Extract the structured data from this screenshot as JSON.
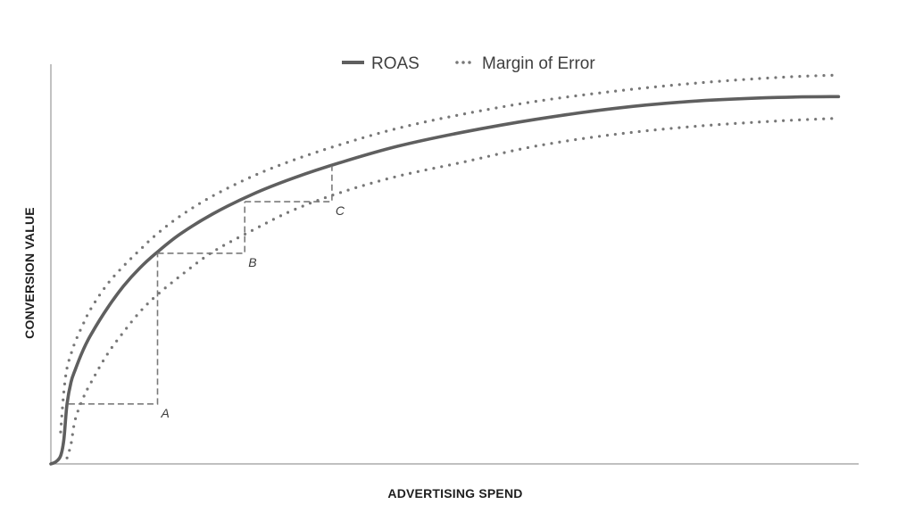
{
  "chart_data": {
    "type": "line",
    "title": "",
    "xlabel": "ADVERTISING SPEND",
    "ylabel": "CONVERSION VALUE",
    "xlim": [
      0,
      100
    ],
    "ylim": [
      0,
      100
    ],
    "grid": false,
    "legend_position": "top-center",
    "legend": [
      {
        "name": "ROAS",
        "style": "solid"
      },
      {
        "name": "Margin of Error",
        "style": "dotted"
      }
    ],
    "series": [
      {
        "name": "ROAS",
        "style": "solid",
        "color": "#5f5f5f",
        "x": [
          0,
          0.6,
          1.2,
          1.6,
          2.0,
          2.5,
          3.0,
          4.0,
          5.0,
          7.0,
          9.0,
          11.0,
          13.0,
          16.0,
          20.0,
          25.0,
          30.0,
          36.0,
          43.0,
          51.0,
          60.0,
          70.0,
          80.0,
          90.0,
          97.5
        ],
        "y": [
          0,
          0.5,
          2.0,
          6.0,
          15.0,
          20.5,
          23.5,
          28.5,
          32.5,
          39.0,
          44.5,
          49.0,
          52.7,
          57.5,
          62.5,
          67.5,
          71.5,
          75.5,
          79.5,
          83.0,
          86.2,
          89.0,
          90.8,
          91.7,
          91.9
        ]
      },
      {
        "name": "Margin of Error (upper)",
        "style": "dotted",
        "color": "#777777",
        "x": [
          1.2,
          1.6,
          2.0,
          2.5,
          3.0,
          4.0,
          5.0,
          7.0,
          9.0,
          11.0,
          13.0,
          16.0,
          20.0,
          25.0,
          30.0,
          36.0,
          43.0,
          51.0,
          60.0,
          70.0,
          80.0,
          90.0,
          97.5
        ],
        "y": [
          8.0,
          18.0,
          24.0,
          27.5,
          30.5,
          35.0,
          39.0,
          45.0,
          49.5,
          53.5,
          57.3,
          62.0,
          67.0,
          72.0,
          76.0,
          80.0,
          84.0,
          87.5,
          90.7,
          93.3,
          95.3,
          96.7,
          97.3
        ]
      },
      {
        "name": "Margin of Error (lower)",
        "style": "dotted",
        "color": "#777777",
        "x": [
          2.0,
          2.5,
          3.0,
          4.0,
          5.0,
          7.0,
          9.0,
          11.0,
          13.0,
          16.0,
          20.0,
          25.0,
          30.0,
          36.0,
          43.0,
          51.0,
          60.0,
          70.0,
          80.0,
          90.0,
          97.5
        ],
        "y": [
          1.5,
          5.0,
          11.0,
          16.5,
          20.5,
          27.5,
          33.0,
          38.0,
          42.0,
          47.0,
          53.0,
          58.5,
          63.5,
          68.0,
          72.0,
          75.5,
          79.5,
          82.5,
          84.5,
          85.8,
          86.5
        ]
      }
    ],
    "annotations": [
      {
        "label": "A",
        "x0": 2.2,
        "x1": 13.2,
        "y0": 15.0,
        "y1": 52.7
      },
      {
        "label": "B",
        "x0": 13.2,
        "x1": 24.0,
        "y0": 52.7,
        "y1": 65.6
      },
      {
        "label": "C",
        "x0": 24.0,
        "x1": 34.8,
        "y0": 65.6,
        "y1": 74.5
      }
    ]
  }
}
